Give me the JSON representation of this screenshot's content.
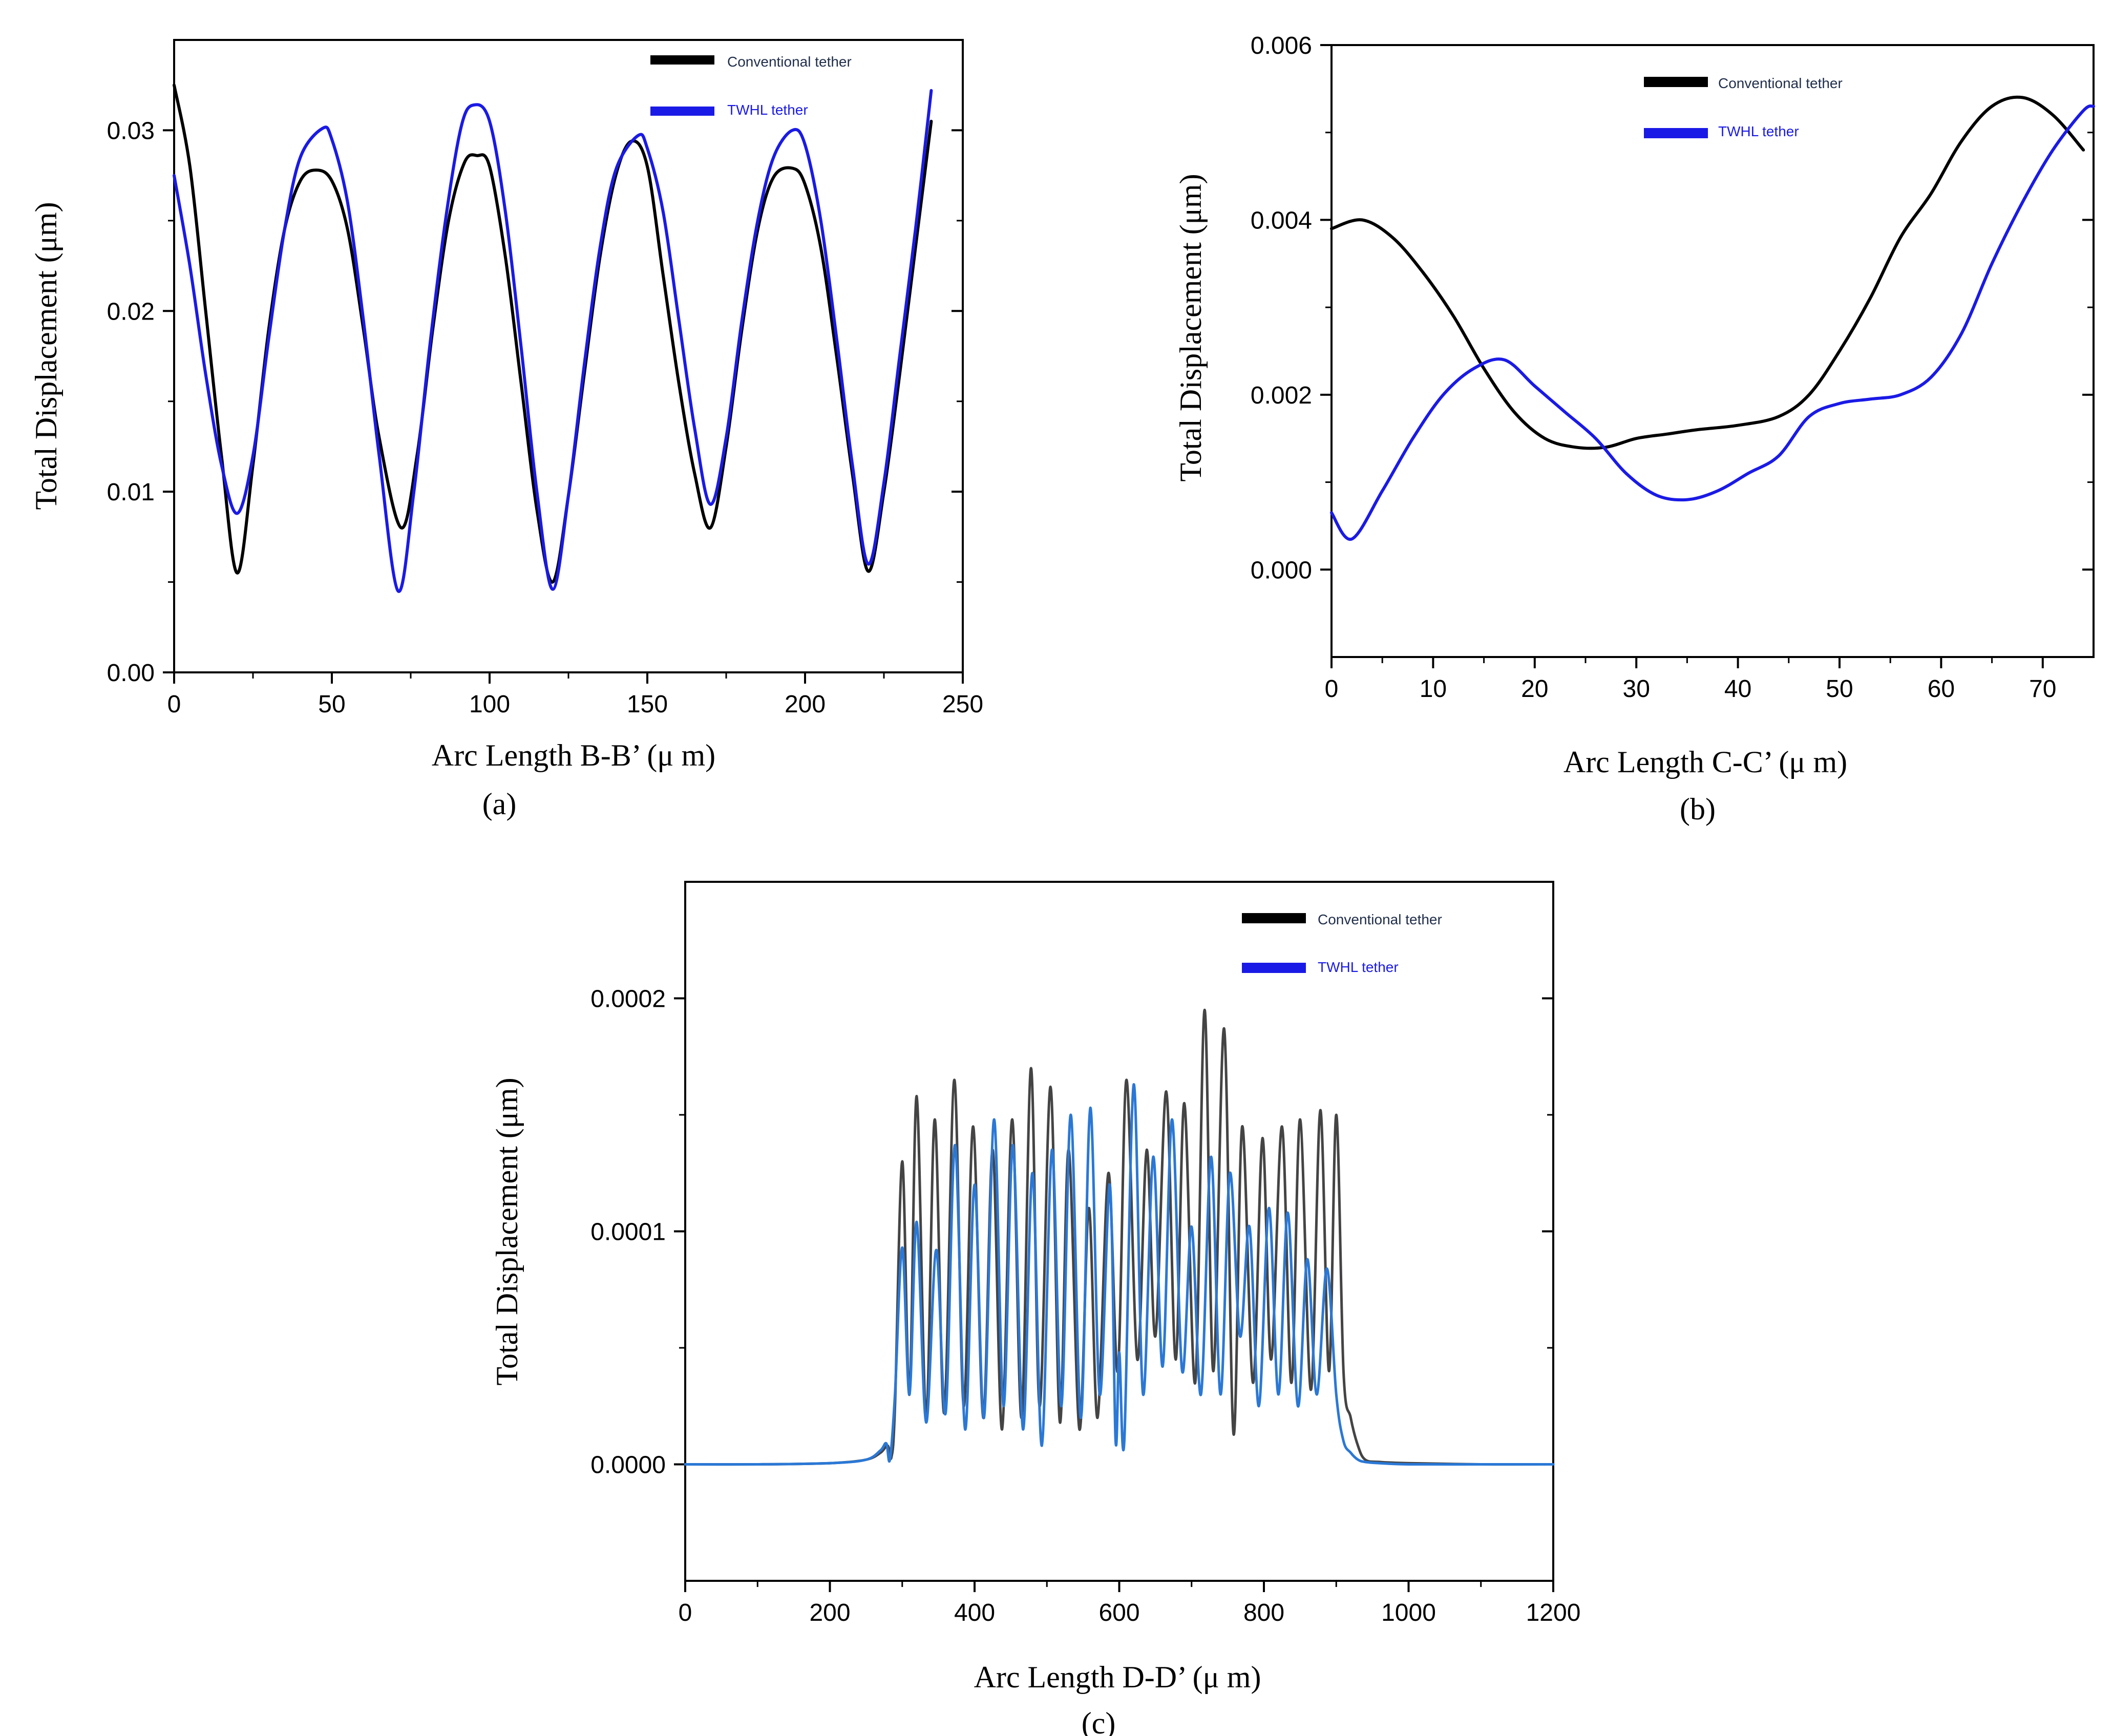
{
  "chart_data": [
    {
      "type": "line",
      "panel": "(a)",
      "xlabel": "Arc Length B-B’ (μ m)",
      "ylabel": "Total Displacement (μm)",
      "xlim": [
        0,
        250
      ],
      "ylim": [
        0,
        0.035
      ],
      "xticks": [
        0,
        50,
        100,
        150,
        200,
        250
      ],
      "xtick_labels": [
        "0",
        "50",
        "100",
        "150",
        "200",
        "250"
      ],
      "yticks": [
        0,
        0.01,
        0.02,
        0.03
      ],
      "ytick_labels": [
        "0.00",
        "0.01",
        "0.02",
        "0.03"
      ],
      "legend_position": "top-right",
      "series": [
        {
          "name": "Conventional tether",
          "color": "#000000",
          "x": [
            0,
            5,
            10,
            15,
            20,
            25,
            30,
            35,
            40,
            45,
            50,
            55,
            60,
            65,
            72,
            77,
            82,
            87,
            92,
            96,
            100,
            105,
            110,
            115,
            120,
            125,
            130,
            135,
            140,
            145,
            150,
            155,
            160,
            165,
            170,
            175,
            180,
            185,
            190,
            196,
            200,
            205,
            210,
            215,
            220,
            225,
            230,
            235,
            240
          ],
          "y": [
            0.0325,
            0.028,
            0.02,
            0.012,
            0.0055,
            0.0115,
            0.019,
            0.0245,
            0.0272,
            0.0278,
            0.0272,
            0.0245,
            0.019,
            0.013,
            0.008,
            0.012,
            0.019,
            0.025,
            0.0282,
            0.0286,
            0.028,
            0.023,
            0.016,
            0.009,
            0.005,
            0.0098,
            0.0165,
            0.023,
            0.0275,
            0.0294,
            0.028,
            0.022,
            0.016,
            0.011,
            0.008,
            0.0125,
            0.019,
            0.0245,
            0.0274,
            0.0279,
            0.027,
            0.0235,
            0.0175,
            0.011,
            0.0056,
            0.01,
            0.0165,
            0.0235,
            0.0305
          ]
        },
        {
          "name": "TWHL tether",
          "color": "#1a1ae6",
          "x": [
            0,
            5,
            10,
            15,
            20,
            25,
            30,
            35,
            40,
            47,
            50,
            55,
            60,
            65,
            71,
            76,
            81,
            86,
            91,
            95,
            100,
            105,
            110,
            115,
            120,
            125,
            130,
            135,
            140,
            147,
            150,
            155,
            160,
            165,
            170,
            175,
            180,
            185,
            190,
            196,
            200,
            205,
            210,
            215,
            220,
            225,
            230,
            235,
            240
          ],
          "y": [
            0.0275,
            0.0225,
            0.0165,
            0.0115,
            0.0088,
            0.012,
            0.0185,
            0.0245,
            0.0285,
            0.0301,
            0.0295,
            0.026,
            0.0195,
            0.012,
            0.0045,
            0.01,
            0.018,
            0.025,
            0.0302,
            0.0314,
            0.0305,
            0.0255,
            0.018,
            0.01,
            0.0046,
            0.0098,
            0.017,
            0.0235,
            0.0278,
            0.0297,
            0.029,
            0.0255,
            0.0195,
            0.0135,
            0.0093,
            0.013,
            0.0195,
            0.025,
            0.0285,
            0.03,
            0.0292,
            0.025,
            0.0185,
            0.0115,
            0.006,
            0.0105,
            0.0175,
            0.0245,
            0.0322
          ]
        }
      ]
    },
    {
      "type": "line",
      "panel": "(b)",
      "xlabel": "Arc Length C-C’ (μ m)",
      "ylabel": "Total Displacement (μm)",
      "xlim": [
        0,
        75
      ],
      "ylim": [
        -0.001,
        0.006
      ],
      "xticks": [
        0,
        10,
        20,
        30,
        40,
        50,
        60,
        70
      ],
      "xtick_labels": [
        "0",
        "10",
        "20",
        "30",
        "40",
        "50",
        "60",
        "70"
      ],
      "yticks": [
        0,
        0.002,
        0.004,
        0.006
      ],
      "ytick_labels": [
        "0.000",
        "0.002",
        "0.004",
        "0.006"
      ],
      "legend_position": "top-right",
      "series": [
        {
          "name": "Conventional tether",
          "color": "#000000",
          "x": [
            0,
            3,
            6,
            9,
            12,
            15,
            18,
            21,
            24,
            27,
            30,
            33,
            36,
            40,
            44,
            47,
            50,
            53,
            56,
            59,
            62,
            65,
            68,
            71,
            74
          ],
          "y": [
            0.0039,
            0.004,
            0.0038,
            0.0034,
            0.0029,
            0.0023,
            0.0018,
            0.0015,
            0.0014,
            0.0014,
            0.0015,
            0.00155,
            0.0016,
            0.00165,
            0.00175,
            0.002,
            0.0025,
            0.0031,
            0.0038,
            0.0043,
            0.0049,
            0.0053,
            0.0054,
            0.0052,
            0.0048
          ]
        },
        {
          "name": "TWHL tether",
          "color": "#1a1ae6",
          "x": [
            0,
            2,
            5,
            8,
            11,
            14,
            17,
            20,
            23,
            26,
            29,
            32,
            35,
            38,
            41,
            44,
            47,
            50,
            53,
            56,
            59,
            62,
            65,
            68,
            71,
            74,
            75
          ],
          "y": [
            0.00065,
            0.00035,
            0.0009,
            0.0015,
            0.002,
            0.0023,
            0.0024,
            0.0021,
            0.0018,
            0.0015,
            0.0011,
            0.00085,
            0.0008,
            0.0009,
            0.0011,
            0.0013,
            0.00175,
            0.0019,
            0.00195,
            0.002,
            0.0022,
            0.0027,
            0.0035,
            0.0042,
            0.0048,
            0.00525,
            0.0053
          ]
        }
      ]
    },
    {
      "type": "line",
      "panel": "(c)",
      "xlabel": "Arc Length D-D’ (μ m)",
      "ylabel": "Total Displacement (μm)",
      "xlim": [
        0,
        1200
      ],
      "ylim": [
        -5e-05,
        0.00025
      ],
      "xticks": [
        0,
        200,
        400,
        600,
        800,
        1000,
        1200
      ],
      "xtick_labels": [
        "0",
        "200",
        "400",
        "600",
        "800",
        "1000",
        "1200"
      ],
      "yticks": [
        0,
        0.0001,
        0.0002
      ],
      "ytick_labels": [
        "0.0000",
        "0.0001",
        "0.0002"
      ],
      "legend_position": "top-right",
      "series": [
        {
          "name": "Conventional tether",
          "color": "#444444",
          "x": [
            0,
            100,
            200,
            250,
            270,
            280,
            285,
            290,
            300,
            310,
            320,
            333,
            345,
            358,
            372,
            385,
            398,
            412,
            425,
            438,
            452,
            465,
            478,
            490,
            505,
            518,
            530,
            545,
            558,
            570,
            585,
            598,
            610,
            625,
            638,
            650,
            665,
            678,
            690,
            705,
            718,
            730,
            745,
            758,
            770,
            785,
            798,
            810,
            825,
            838,
            850,
            865,
            878,
            890,
            900,
            910,
            920,
            930,
            940,
            960,
            1000,
            1100,
            1200
          ],
          "y": [
            0,
            0,
            5e-07,
            2e-06,
            5e-06,
            8e-06,
            3e-06,
            2.5e-05,
            0.00013,
            3e-05,
            0.000158,
            2e-05,
            0.000148,
            2.2e-05,
            0.000165,
            2.5e-05,
            0.000145,
            2e-05,
            0.000135,
            1.5e-05,
            0.000148,
            2e-05,
            0.00017,
            2.5e-05,
            0.000162,
            1.8e-05,
            0.000135,
            1.5e-05,
            0.00011,
            2e-05,
            0.000125,
            4e-05,
            0.000165,
            4.5e-05,
            0.000135,
            5.5e-05,
            0.00016,
            4.5e-05,
            0.000155,
            3.5e-05,
            0.000195,
            4e-05,
            0.000187,
            1.3e-05,
            0.000145,
            3.5e-05,
            0.00014,
            4.5e-05,
            0.000145,
            3.5e-05,
            0.000148,
            3.2e-05,
            0.000152,
            4e-05,
            0.00015,
            4e-05,
            2e-05,
            8e-06,
            2e-06,
            1e-06,
            5e-07,
            0,
            0
          ]
        },
        {
          "name": "TWHL tether",
          "color": "#2a78d6",
          "x": [
            0,
            100,
            200,
            250,
            270,
            278,
            283,
            290,
            300,
            310,
            320,
            333,
            347,
            360,
            373,
            387,
            400,
            413,
            427,
            440,
            453,
            467,
            480,
            493,
            507,
            520,
            533,
            547,
            560,
            573,
            587,
            595,
            600,
            607,
            620,
            633,
            647,
            660,
            673,
            687,
            700,
            713,
            727,
            740,
            753,
            767,
            780,
            793,
            807,
            820,
            833,
            847,
            860,
            873,
            887,
            900,
            910,
            920,
            930,
            940,
            960,
            1000,
            1100,
            1200
          ],
          "y": [
            0,
            0,
            5e-07,
            2e-06,
            6e-06,
            9e-06,
            2e-06,
            3e-05,
            9.3e-05,
            3e-05,
            0.000104,
            1.8e-05,
            9.2e-05,
            2.2e-05,
            0.000137,
            1.5e-05,
            0.00012,
            2e-05,
            0.000148,
            2.5e-05,
            0.000137,
            1.5e-05,
            0.000125,
            8e-06,
            0.000135,
            2.5e-05,
            0.00015,
            2e-05,
            0.000153,
            3e-05,
            0.00012,
            1e-05,
            4.8e-05,
            1e-05,
            0.000163,
            3e-05,
            0.000132,
            4.2e-05,
            0.000148,
            4e-05,
            0.000102,
            3e-05,
            0.000132,
            3e-05,
            0.000125,
            5.5e-05,
            0.000102,
            2.5e-05,
            0.00011,
            3e-05,
            0.000108,
            2.5e-05,
            8.8e-05,
            3e-05,
            8.4e-05,
            3e-05,
            1e-05,
            5e-06,
            2e-06,
            1e-06,
            5e-07,
            0,
            0,
            0
          ]
        }
      ]
    }
  ]
}
